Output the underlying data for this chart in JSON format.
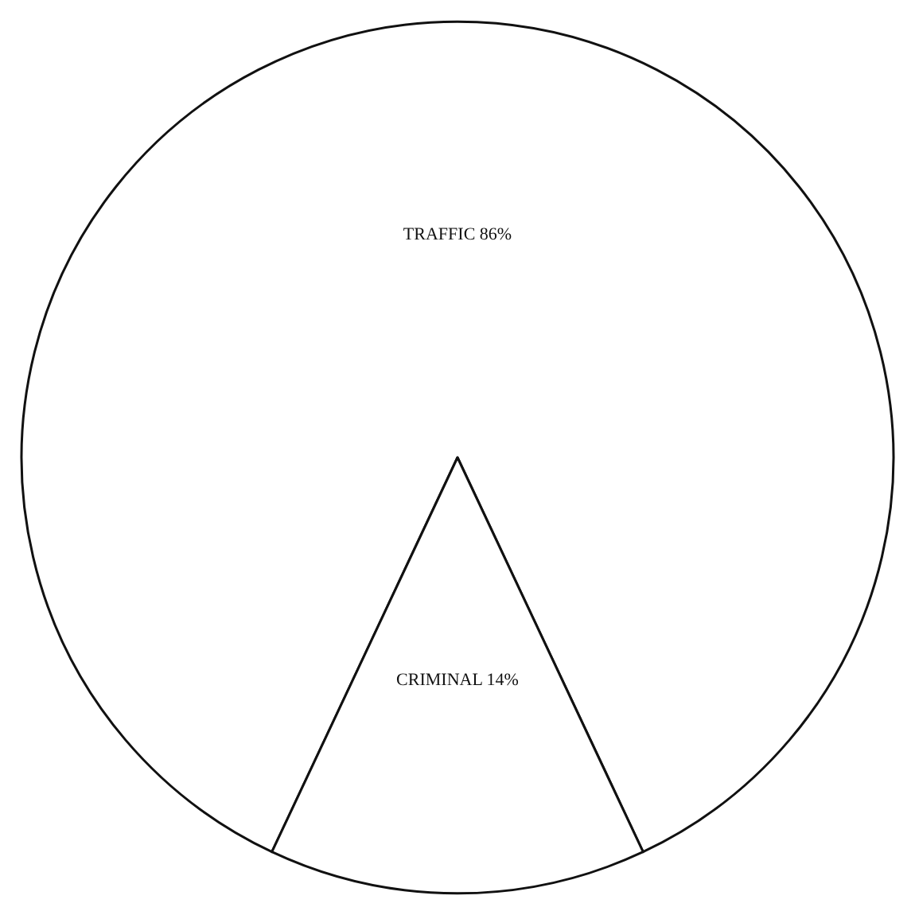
{
  "chart_data": {
    "type": "pie",
    "categories": [
      "TRAFFIC",
      "CRIMINAL"
    ],
    "values": [
      86,
      14
    ],
    "value_labels": [
      "86%",
      "14%"
    ],
    "colors": [
      "#ffffff",
      "#ffffff"
    ]
  }
}
